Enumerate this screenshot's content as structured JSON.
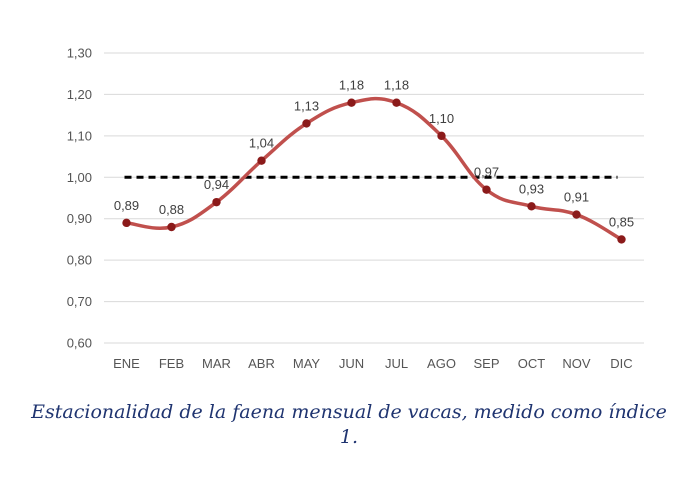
{
  "chart_data": {
    "type": "line",
    "categories": [
      "ENE",
      "FEB",
      "MAR",
      "ABR",
      "MAY",
      "JUN",
      "JUL",
      "AGO",
      "SEP",
      "OCT",
      "NOV",
      "DIC"
    ],
    "series": [
      {
        "values": [
          0.89,
          0.88,
          0.94,
          1.04,
          1.13,
          1.18,
          1.18,
          1.1,
          0.97,
          0.93,
          0.91,
          0.85
        ],
        "labels": [
          "0,89",
          "0,88",
          "0,94",
          "1,04",
          "1,13",
          "1,18",
          "1,18",
          "1,10",
          "0,97",
          "0,93",
          "0,91",
          "0,85"
        ],
        "color": "#c0504d",
        "marker_color": "#8b1a1a"
      }
    ],
    "reference_line": {
      "value": 1.0,
      "style": "dashed",
      "color": "#000000"
    },
    "ylim": [
      0.6,
      1.3
    ],
    "yticks": [
      1.3,
      1.2,
      1.1,
      1.0,
      0.9,
      0.8,
      0.7,
      0.6
    ],
    "ytick_labels": [
      "1,30",
      "1,20",
      "1,10",
      "1,00",
      "0,90",
      "0,80",
      "0,70",
      "0,60"
    ],
    "grid": true,
    "legend": "none"
  },
  "caption": "Estacionalidad de la faena mensual de vacas, medido como índice 1."
}
